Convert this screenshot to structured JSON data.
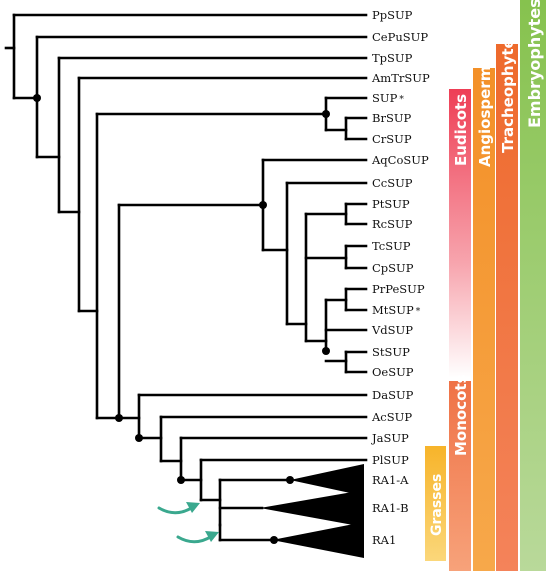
{
  "leaves": {
    "pp": "PpSUP",
    "cepu": "CePuSUP",
    "tp": "TpSUP",
    "amtr": "AmTrSUP",
    "sup": "SUP",
    "br": "BrSUP",
    "cr": "CrSUP",
    "aqco": "AqCoSUP",
    "cc": "CcSUP",
    "pt": "PtSUP",
    "rc": "RcSUP",
    "tc": "TcSUP",
    "cp": "CpSUP",
    "prpe": "PrPeSUP",
    "mt": "MtSUP",
    "vd": "VdSUP",
    "st": "StSUP",
    "oe": "OeSUP",
    "da": "DaSUP",
    "ac": "AcSUP",
    "ja": "JaSUP",
    "pl": "PlSUP",
    "ra1a": "RA1-A",
    "ra1b": "RA1-B",
    "ra1": "RA1"
  },
  "marker": "*",
  "groups": {
    "embryophytes": {
      "label": "Embryophytes",
      "color": "#8cbf5a"
    },
    "tracheophytes": {
      "label": "Tracheophytes",
      "color": "#ee6b2d"
    },
    "angiosperms": {
      "label": "Angiosperms",
      "color": "#f4952a"
    },
    "eudicots": {
      "label": "Eudicots",
      "color": "#f0455b"
    },
    "monocots": {
      "label": "Monocots",
      "color": "#f0774a"
    },
    "grasses": {
      "label": "Grasses",
      "color": "#f7b82c"
    }
  },
  "arrow_color": "#3aa88e"
}
